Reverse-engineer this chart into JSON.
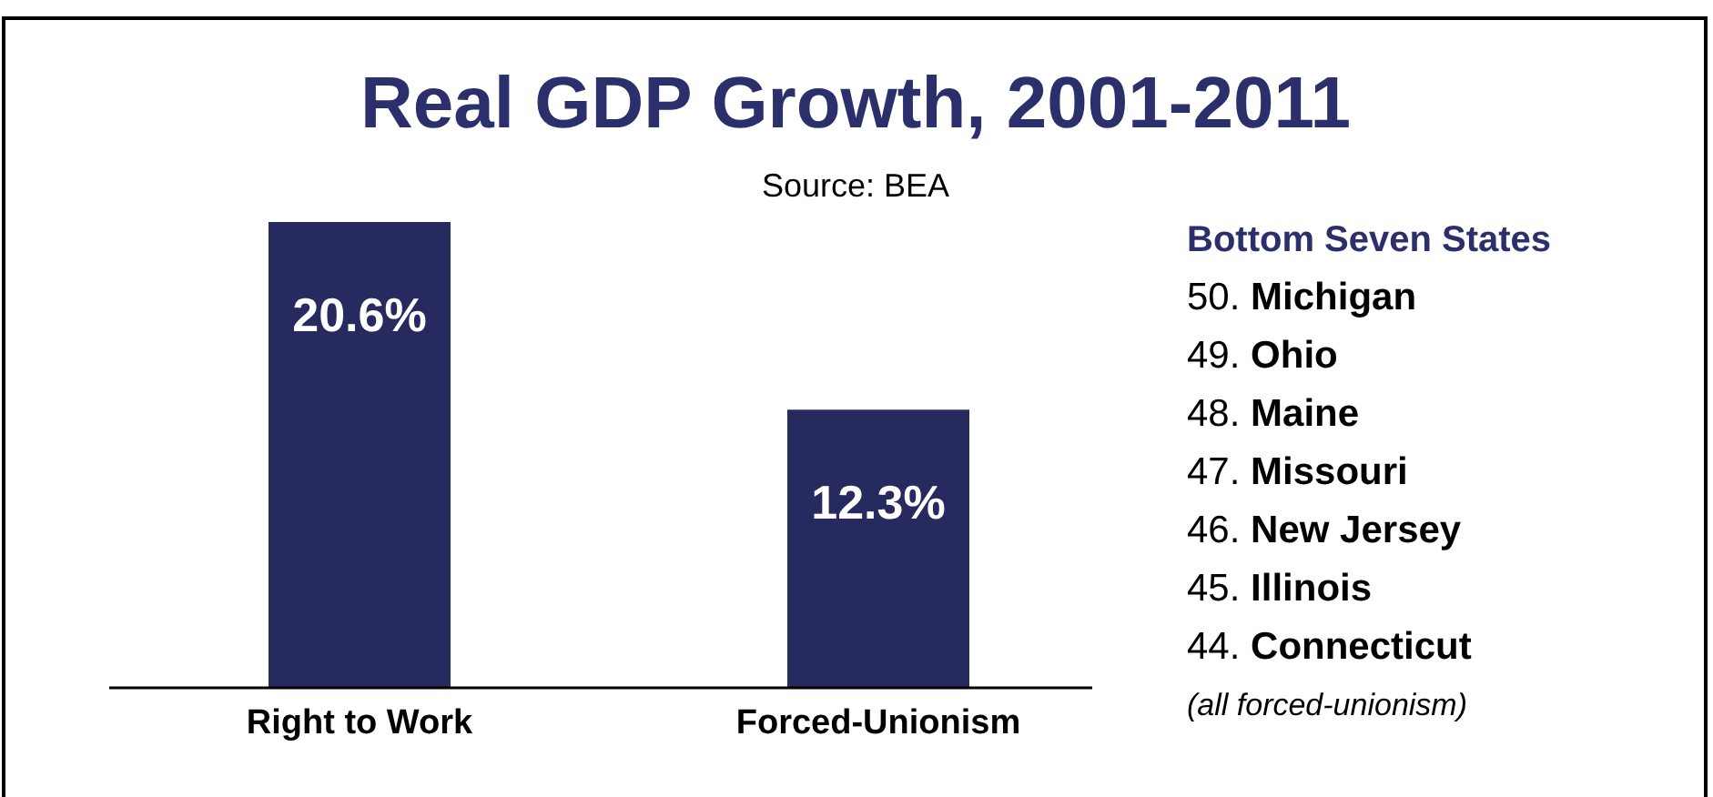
{
  "chart_data": {
    "type": "bar",
    "title": "Real GDP Growth, 2001-2011",
    "subtitle": "Source: BEA",
    "categories": [
      "Right to Work",
      "Forced-Unionism"
    ],
    "values": [
      20.6,
      12.3
    ],
    "value_labels": [
      "20.6%",
      "12.3%"
    ],
    "color": "#262a5e",
    "annotations": [
      "Bottom Seven States",
      "50. Michigan",
      "49. Ohio",
      "48. Maine",
      "47. Missouri",
      "46. New Jersey",
      "45. Illinois",
      "44. Connecticut",
      "(all forced-unionism)"
    ]
  }
}
